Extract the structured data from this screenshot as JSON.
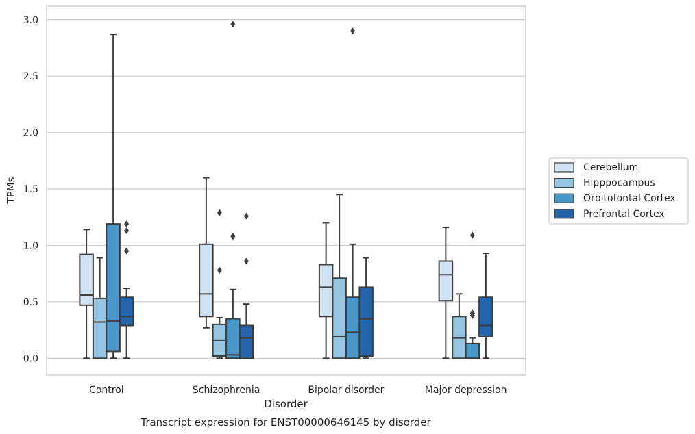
{
  "chart_data": {
    "type": "box",
    "caption": "Transcript expression for ENST00000646145 by disorder",
    "xlabel": "Disorder",
    "ylabel": "TPMs",
    "ylim": [
      -0.15,
      3.12
    ],
    "yticks": [
      0.0,
      0.5,
      1.0,
      1.5,
      2.0,
      2.5,
      3.0
    ],
    "ytick_labels": [
      "0.0",
      "0.5",
      "1.0",
      "1.5",
      "2.0",
      "2.5",
      "3.0"
    ],
    "grid": "horizontal",
    "legend_position": "right",
    "categories": [
      "Control",
      "Schizophrenia",
      "Bipolar disorder",
      "Major depression"
    ],
    "series": [
      {
        "name": "Cerebellum",
        "color": "#d0e1f2",
        "boxes": [
          {
            "min": 0.0,
            "q1": 0.47,
            "median": 0.56,
            "q3": 0.92,
            "max": 1.14,
            "outliers": []
          },
          {
            "min": 0.27,
            "q1": 0.37,
            "median": 0.57,
            "q3": 1.01,
            "max": 1.6,
            "outliers": []
          },
          {
            "min": 0.0,
            "q1": 0.37,
            "median": 0.63,
            "q3": 0.83,
            "max": 1.2,
            "outliers": []
          },
          {
            "min": 0.0,
            "q1": 0.51,
            "median": 0.74,
            "q3": 0.86,
            "max": 1.16,
            "outliers": []
          }
        ]
      },
      {
        "name": "Hipppocampus",
        "color": "#94c4df",
        "boxes": [
          {
            "min": 0.0,
            "q1": 0.0,
            "median": 0.32,
            "q3": 0.53,
            "max": 0.89,
            "outliers": []
          },
          {
            "min": 0.0,
            "q1": 0.02,
            "median": 0.16,
            "q3": 0.3,
            "max": 0.36,
            "outliers": [
              0.78,
              1.29
            ]
          },
          {
            "min": 0.0,
            "q1": 0.0,
            "median": 0.19,
            "q3": 0.71,
            "max": 1.45,
            "outliers": []
          },
          {
            "min": 0.0,
            "q1": 0.0,
            "median": 0.18,
            "q3": 0.37,
            "max": 0.57,
            "outliers": []
          }
        ]
      },
      {
        "name": "Orbitofontal Cortex",
        "color": "#4a98c9",
        "boxes": [
          {
            "min": 0.0,
            "q1": 0.06,
            "median": 0.33,
            "q3": 1.19,
            "max": 2.87,
            "outliers": []
          },
          {
            "min": 0.0,
            "q1": 0.0,
            "median": 0.03,
            "q3": 0.35,
            "max": 0.61,
            "outliers": [
              1.08,
              2.96
            ]
          },
          {
            "min": 0.0,
            "q1": 0.0,
            "median": 0.23,
            "q3": 0.54,
            "max": 1.01,
            "outliers": [
              2.9
            ]
          },
          {
            "min": 0.0,
            "q1": 0.0,
            "median": 0.0,
            "q3": 0.13,
            "max": 0.18,
            "outliers": [
              0.38,
              0.4,
              1.09
            ]
          }
        ]
      },
      {
        "name": "Prefrontal Cortex",
        "color": "#2464a8",
        "boxes": [
          {
            "min": 0.0,
            "q1": 0.29,
            "median": 0.37,
            "q3": 0.54,
            "max": 0.62,
            "outliers": [
              0.95,
              1.13,
              1.19
            ]
          },
          {
            "min": 0.0,
            "q1": 0.0,
            "median": 0.18,
            "q3": 0.29,
            "max": 0.48,
            "outliers": [
              0.86,
              1.26
            ]
          },
          {
            "min": 0.0,
            "q1": 0.02,
            "median": 0.35,
            "q3": 0.63,
            "max": 0.89,
            "outliers": []
          },
          {
            "min": 0.0,
            "q1": 0.19,
            "median": 0.29,
            "q3": 0.54,
            "max": 0.93,
            "outliers": []
          }
        ]
      }
    ]
  }
}
